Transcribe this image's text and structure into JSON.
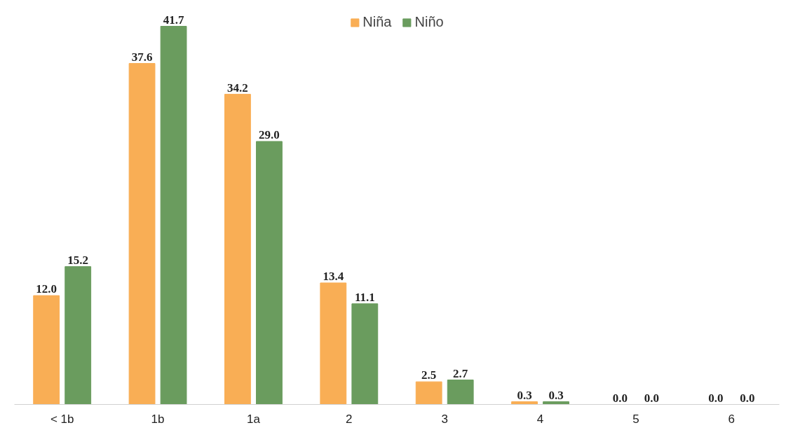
{
  "chart_data": {
    "type": "bar",
    "categories": [
      "< 1b",
      "1b",
      "1a",
      "2",
      "3",
      "4",
      "5",
      "6"
    ],
    "series": [
      {
        "name": "Niña",
        "color": "#f9ae55",
        "values": [
          12.0,
          37.6,
          34.2,
          13.4,
          2.5,
          0.3,
          0.0,
          0.0
        ],
        "value_labels": [
          "12.0",
          "37.6",
          "34.2",
          "13.4",
          "2.5",
          "0.3",
          "0.0",
          "0.0"
        ]
      },
      {
        "name": "Niño",
        "color": "#6a9c5e",
        "values": [
          15.2,
          41.7,
          29.0,
          11.1,
          2.7,
          0.3,
          0.0,
          0.0
        ],
        "value_labels": [
          "15.2",
          "41.7",
          "29.0",
          "11.1",
          "2.7",
          "0.3",
          "0.0",
          "0.0"
        ]
      }
    ],
    "legend": "top",
    "grid": false
  }
}
